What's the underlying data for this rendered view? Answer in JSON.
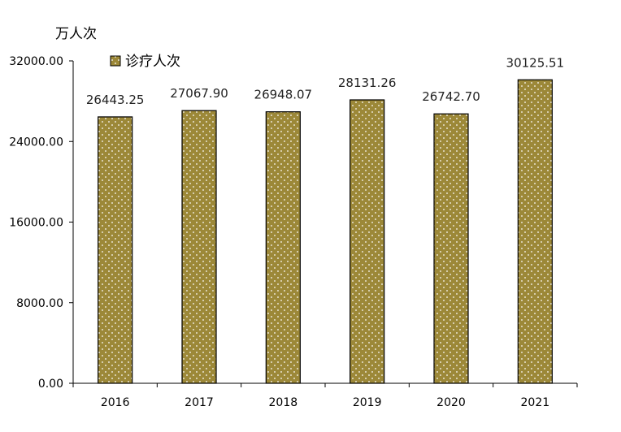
{
  "chart_data": {
    "type": "bar",
    "unit_label": "万人次",
    "categories": [
      "2016",
      "2017",
      "2018",
      "2019",
      "2020",
      "2021"
    ],
    "series": [
      {
        "name": "诊疗人次",
        "values": [
          26443.25,
          27067.9,
          26948.07,
          28131.26,
          26742.7,
          30125.51
        ],
        "labels": [
          "26443.25",
          "27067.90",
          "26948.07",
          "28131.26",
          "26742.70",
          "30125.51"
        ]
      }
    ],
    "y_ticks": [
      "0.00",
      "8000.00",
      "16000.00",
      "24000.00",
      "32000.00"
    ],
    "ylim": [
      0,
      32000
    ],
    "legend_position": "top-left",
    "grid": false,
    "bar_color": "#9c8838",
    "bar_outline": "#000000",
    "dot_color": "#ffffff"
  }
}
